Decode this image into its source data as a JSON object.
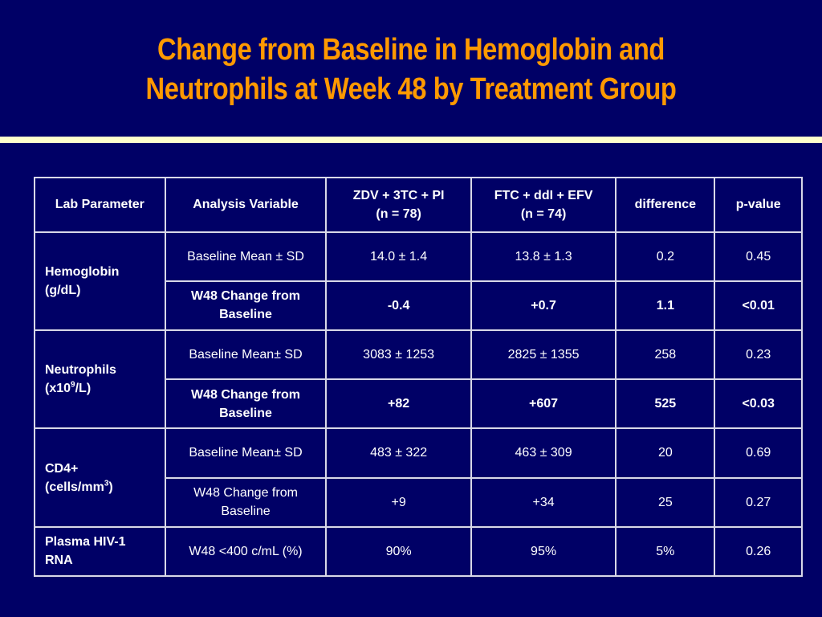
{
  "title": {
    "line1": "Change from Baseline in Hemoglobin and",
    "line2": "Neutrophils at Week 48 by Treatment Group"
  },
  "colors": {
    "background": "#000066",
    "title": "#ff9900",
    "rule": "#ffffcc",
    "table_text": "#ffffff",
    "table_border": "#d8d8e8"
  },
  "table": {
    "headers": {
      "lab_parameter": "Lab Parameter",
      "analysis_variable": "Analysis Variable",
      "group1_line1": "ZDV + 3TC + PI",
      "group1_line2": "(n = 78)",
      "group2_line1": "FTC + ddI + EFV",
      "group2_line2": "(n = 74)",
      "difference": "difference",
      "p_value": "p-value"
    },
    "parameters": {
      "hemoglobin_line1": "Hemoglobin",
      "hemoglobin_line2": "(g/dL)",
      "neutrophils_line1": "Neutrophils",
      "neutrophils_line2a": "(x10",
      "neutrophils_sup": "9",
      "neutrophils_line2b": "/L)",
      "cd4_line1": "CD4+",
      "cd4_line2a": "(cells/mm",
      "cd4_sup": "3",
      "cd4_line2b": ")",
      "hiv_line1": "Plasma HIV-1",
      "hiv_line2": "RNA"
    },
    "rows": [
      {
        "variable_line1": "Baseline Mean ± SD",
        "variable_line2": "",
        "group1": "14.0 ± 1.4",
        "group2": "13.8 ± 1.3",
        "difference": "0.2",
        "p_value": "0.45"
      },
      {
        "variable_line1": "W48 Change from",
        "variable_line2": "Baseline",
        "group1": "-0.4",
        "group2": "+0.7",
        "difference": "1.1",
        "p_value": "<0.01"
      },
      {
        "variable_line1": "Baseline Mean± SD",
        "variable_line2": "",
        "group1": "3083 ± 1253",
        "group2": "2825 ± 1355",
        "difference": "258",
        "p_value": "0.23"
      },
      {
        "variable_line1": "W48 Change from",
        "variable_line2": "Baseline",
        "group1": "+82",
        "group2": "+607",
        "difference": "525",
        "p_value": "<0.03"
      },
      {
        "variable_line1": "Baseline Mean± SD",
        "variable_line2": "",
        "group1": "483 ± 322",
        "group2": "463 ± 309",
        "difference": "20",
        "p_value": "0.69"
      },
      {
        "variable_line1": "W48 Change from",
        "variable_line2": "Baseline",
        "group1": "+9",
        "group2": "+34",
        "difference": "25",
        "p_value": "0.27"
      },
      {
        "variable_line1": "W48 <400 c/mL (%)",
        "variable_line2": "",
        "group1": "90%",
        "group2": "95%",
        "difference": "5%",
        "p_value": "0.26"
      }
    ]
  }
}
